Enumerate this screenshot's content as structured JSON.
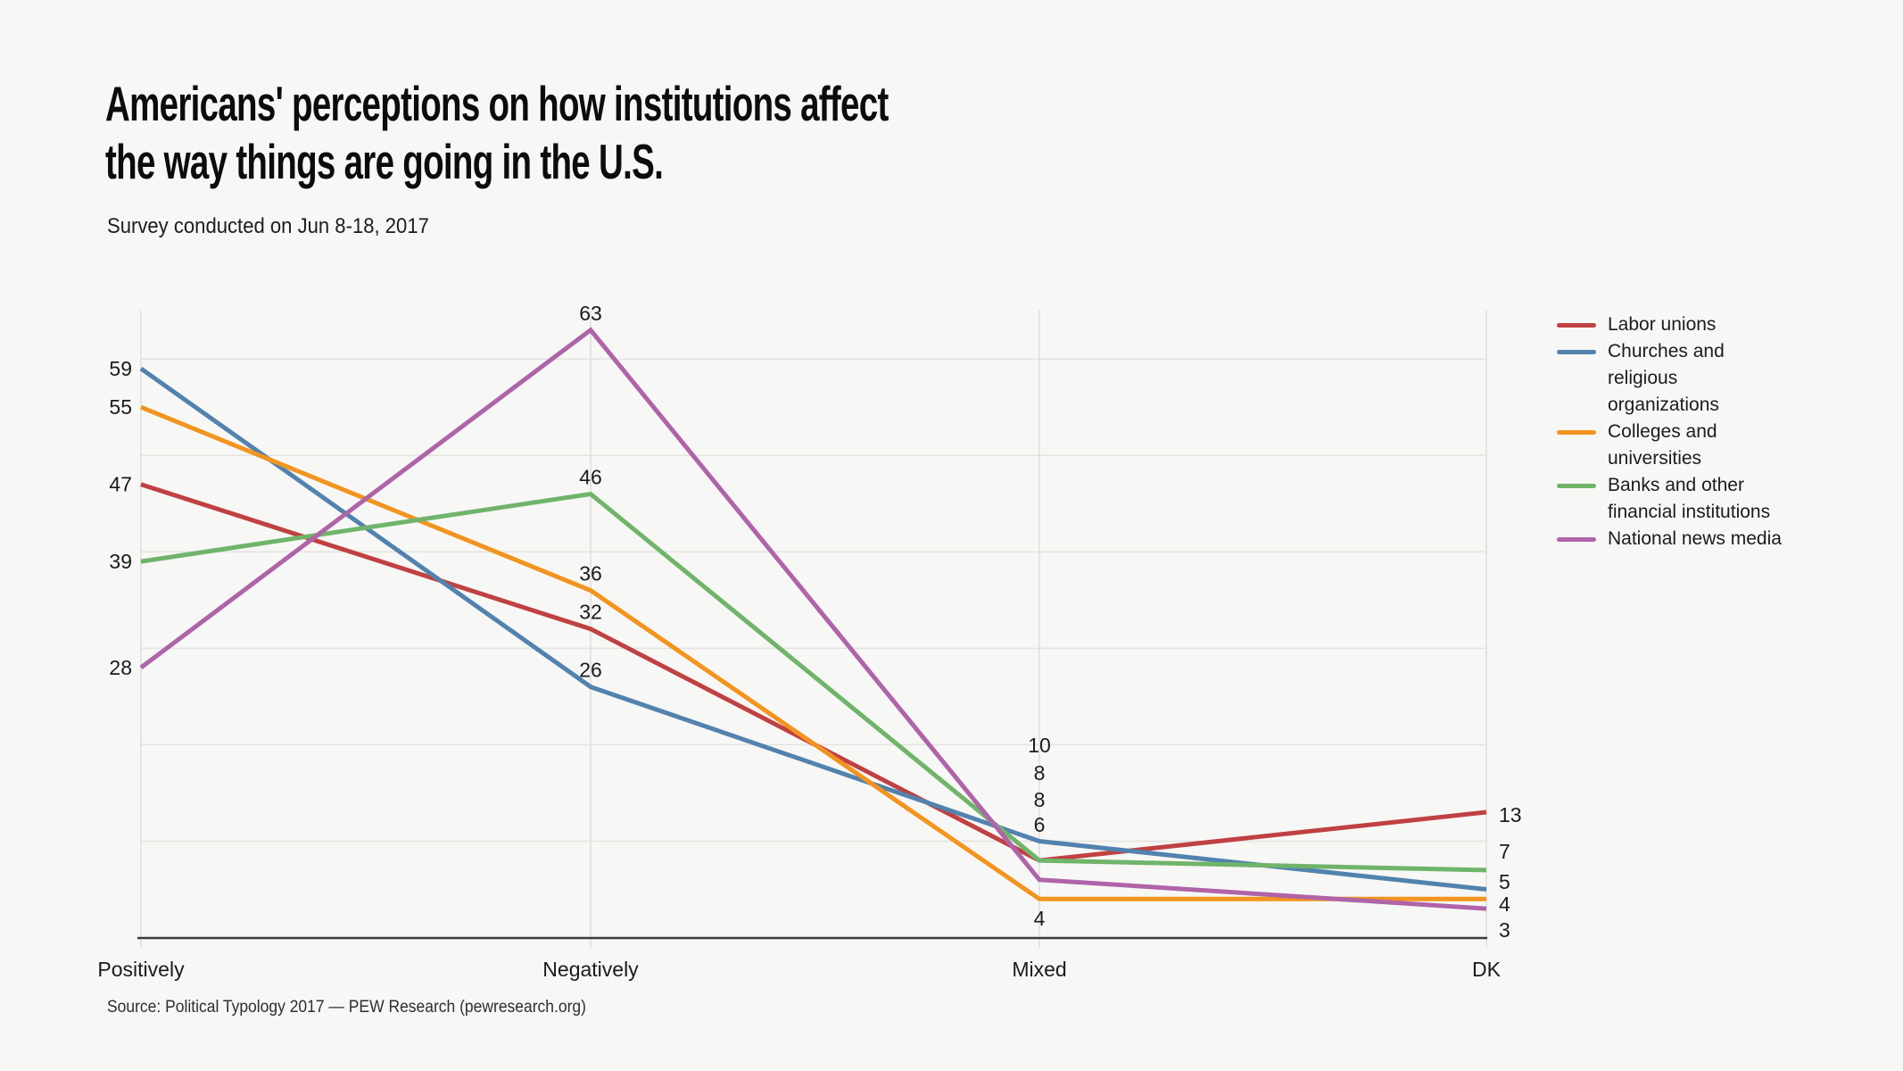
{
  "header": {
    "title_lines": [
      "Americans' perceptions on how institutions affect",
      "the way things are going in the U.S."
    ],
    "subtitle": "Survey conducted on Jun 8-18, 2017"
  },
  "source_note": "Source: Political Typology 2017 — PEW Research (pewresearch.org)",
  "chart_data": {
    "type": "line",
    "title": "Americans' perceptions on how institutions affect the way things are going in the U.S.",
    "subtitle": "Survey conducted on Jun 8-18, 2017",
    "categories": [
      "Positively",
      "Negatively",
      "Mixed",
      "DK"
    ],
    "series": [
      {
        "name": "Labor unions",
        "color": "#c04142",
        "values": [
          47,
          32,
          8,
          13
        ]
      },
      {
        "name": "Churches and religious organizations",
        "color": "#5282ae",
        "values": [
          59,
          26,
          10,
          5
        ]
      },
      {
        "name": "Colleges and universities",
        "color": "#f2941f",
        "values": [
          55,
          36,
          4,
          4
        ]
      },
      {
        "name": "Banks and other financial institutions",
        "color": "#70b46a",
        "values": [
          39,
          46,
          8,
          7
        ]
      },
      {
        "name": "National news media",
        "color": "#af64a9",
        "values": [
          28,
          63,
          6,
          3
        ]
      }
    ],
    "xlabel": "",
    "ylabel": "",
    "ylim": [
      0,
      65
    ],
    "gridline_interval": 10,
    "grid": "horizontal gridlines every 10 units; vertical gridline at each category",
    "legend_position": "right",
    "value_labels": "every data point labeled with its value",
    "colors": {
      "background": "#f7f7f5",
      "gridline": "#e4e3e0",
      "axis_line": "#3c3c3c",
      "label_text": "#1b1b1b"
    }
  }
}
